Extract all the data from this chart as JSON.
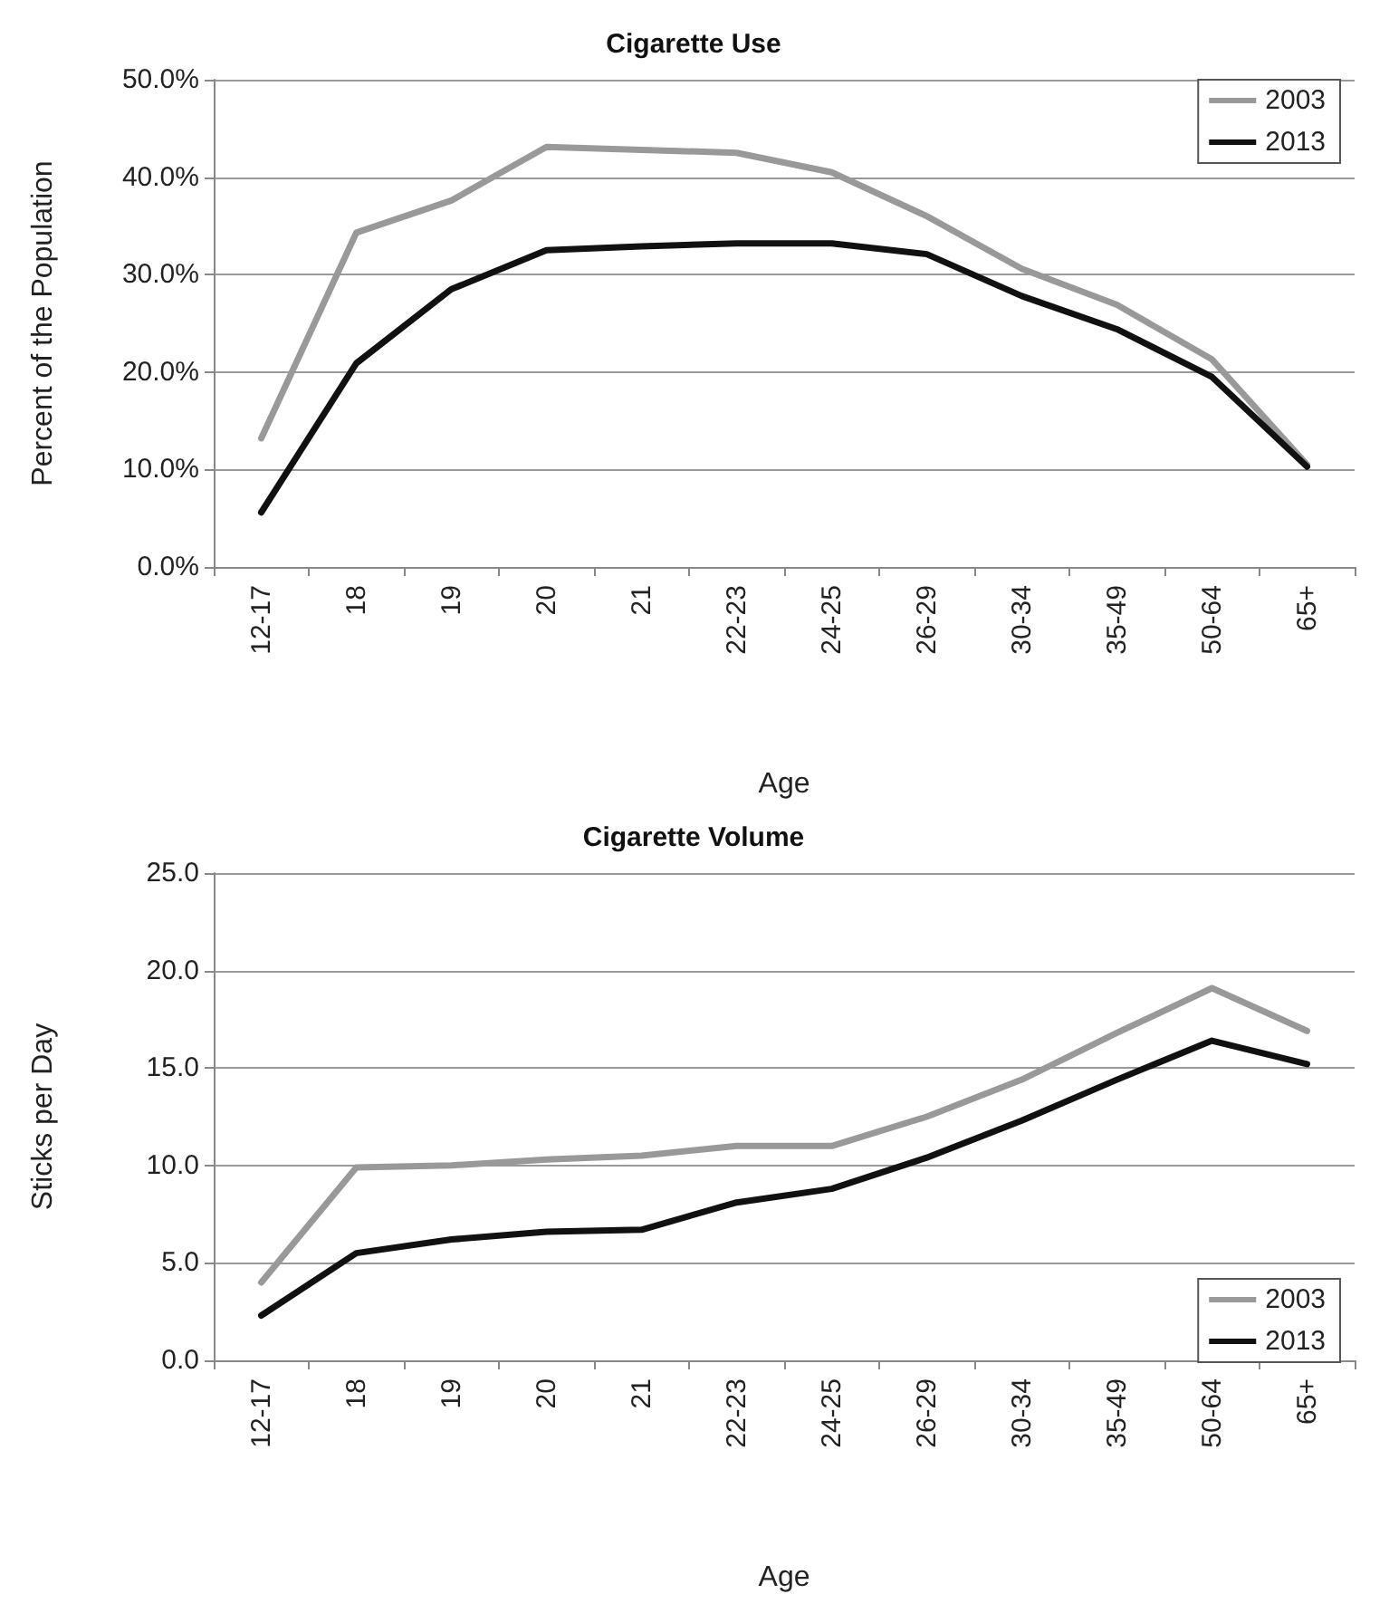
{
  "chart_data": [
    {
      "type": "line",
      "title": "Cigarette Use",
      "xlabel": "Age",
      "ylabel": "Percent of the Population",
      "categories": [
        "12-17",
        "18",
        "19",
        "20",
        "21",
        "22-23",
        "24-25",
        "26-29",
        "30-34",
        "35-49",
        "50-64",
        "65+"
      ],
      "series": [
        {
          "name": "2003",
          "color": "#999999",
          "values": [
            13.2,
            34.3,
            37.6,
            43.1,
            42.8,
            42.5,
            40.5,
            36.0,
            30.6,
            26.9,
            21.3,
            10.5
          ]
        },
        {
          "name": "2013",
          "color": "#111111",
          "values": [
            5.6,
            20.9,
            28.5,
            32.5,
            32.9,
            33.2,
            33.2,
            32.1,
            27.8,
            24.4,
            19.5,
            10.3
          ]
        }
      ],
      "ylim": [
        0,
        50
      ],
      "yticks": [
        {
          "value": 0,
          "label": "0.0%"
        },
        {
          "value": 10,
          "label": "10.0%"
        },
        {
          "value": 20,
          "label": "20.0%"
        },
        {
          "value": 30,
          "label": "30.0%"
        },
        {
          "value": 40,
          "label": "40.0%"
        },
        {
          "value": 50,
          "label": "50.0%"
        }
      ],
      "grid": "y",
      "legend": "top right",
      "marker": "none",
      "line_style": "solid"
    },
    {
      "type": "line",
      "title": "Cigarette Volume",
      "xlabel": "Age",
      "ylabel": "Sticks per Day",
      "categories": [
        "12-17",
        "18",
        "19",
        "20",
        "21",
        "22-23",
        "24-25",
        "26-29",
        "30-34",
        "35-49",
        "50-64",
        "65+"
      ],
      "series": [
        {
          "name": "2003",
          "color": "#999999",
          "values": [
            4.0,
            9.9,
            10.0,
            10.3,
            10.5,
            11.0,
            11.0,
            12.5,
            14.4,
            16.8,
            19.1,
            16.9
          ]
        },
        {
          "name": "2013",
          "color": "#111111",
          "values": [
            2.3,
            5.5,
            6.2,
            6.6,
            6.7,
            8.1,
            8.8,
            10.4,
            12.3,
            14.4,
            16.4,
            15.2
          ]
        }
      ],
      "ylim": [
        0,
        25
      ],
      "yticks": [
        {
          "value": 0,
          "label": "0.0"
        },
        {
          "value": 5,
          "label": "5.0"
        },
        {
          "value": 10,
          "label": "10.0"
        },
        {
          "value": 15,
          "label": "15.0"
        },
        {
          "value": 20,
          "label": "20.0"
        },
        {
          "value": 25,
          "label": "25.0"
        }
      ],
      "grid": "y",
      "legend": "bottom right",
      "marker": "none",
      "line_style": "solid"
    }
  ]
}
